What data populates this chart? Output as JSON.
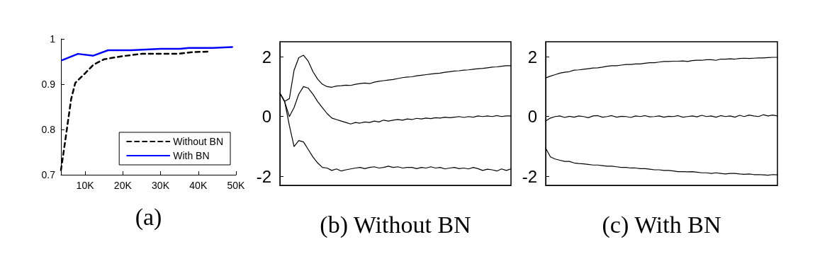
{
  "chart_data": [
    {
      "type": "line",
      "xlabel": "(a)",
      "xlim": [
        3600,
        50000
      ],
      "xticks": [
        {
          "value": 10000,
          "label": "10K"
        },
        {
          "value": 20000,
          "label": "20K"
        },
        {
          "value": 30000,
          "label": "30K"
        },
        {
          "value": 40000,
          "label": "40K"
        },
        {
          "value": 50000,
          "label": "50K"
        }
      ],
      "ylim": [
        0.7,
        1
      ],
      "yticks": [
        0.7,
        0.8,
        0.9,
        1
      ],
      "legend": "bottom right",
      "marker": "none",
      "series": [
        {
          "name": "Without BN",
          "color": "#000000",
          "line_style": "dashed",
          "x": [
            3600,
            4700,
            6300,
            7400,
            10000,
            12200,
            15000,
            20000,
            25000,
            30000,
            34400,
            38800,
            43100
          ],
          "values": [
            0.71,
            0.773,
            0.867,
            0.903,
            0.924,
            0.943,
            0.955,
            0.962,
            0.967,
            0.967,
            0.967,
            0.971,
            0.972
          ]
        },
        {
          "name": "With BN",
          "color": "#0000ff",
          "line_style": "solid",
          "x": [
            3900,
            8100,
            12200,
            16100,
            22200,
            30000,
            35000,
            37500,
            43800,
            49000
          ],
          "values": [
            0.953,
            0.967,
            0.963,
            0.975,
            0.975,
            0.978,
            0.978,
            0.98,
            0.98,
            0.982
          ]
        }
      ]
    },
    {
      "type": "line",
      "xlabel": "(b) Without BN",
      "ylim": [
        -2.3,
        2.5
      ],
      "yticks": [
        -2,
        0,
        2
      ],
      "tick_labels": "y",
      "marker": "none",
      "categories": [
        null,
        null,
        null,
        null,
        null,
        null,
        null,
        null,
        null,
        null,
        null,
        null,
        null,
        null,
        null,
        null,
        null,
        null,
        null,
        null,
        null,
        null,
        null,
        null,
        null,
        null,
        null,
        null,
        null,
        null,
        null,
        null,
        null,
        null,
        null,
        null,
        null,
        null,
        null,
        null,
        null,
        null,
        null,
        null,
        null,
        null,
        null,
        null,
        null,
        null
      ],
      "series": [
        {
          "color": "#000000",
          "values": [
            0.78,
            0.51,
            0.6,
            1.55,
            1.97,
            2.05,
            1.85,
            1.5,
            1.25,
            1.08,
            1.0,
            0.98,
            1.02,
            1.03,
            1.05,
            1.04,
            1.08,
            1.1,
            1.12,
            1.1,
            1.15,
            1.18,
            1.2,
            1.22,
            1.24,
            1.27,
            1.3,
            1.32,
            1.33,
            1.36,
            1.38,
            1.4,
            1.42,
            1.44,
            1.45,
            1.48,
            1.5,
            1.52,
            1.53,
            1.55,
            1.56,
            1.58,
            1.6,
            1.61,
            1.63,
            1.65,
            1.66,
            1.68,
            1.7,
            1.7
          ]
        },
        {
          "color": "#000000",
          "values": [
            0.78,
            0.5,
            0.0,
            0.3,
            0.75,
            1.0,
            0.95,
            0.75,
            0.5,
            0.3,
            0.1,
            -0.05,
            -0.1,
            -0.15,
            -0.2,
            -0.25,
            -0.2,
            -0.22,
            -0.18,
            -0.2,
            -0.15,
            -0.18,
            -0.12,
            -0.15,
            -0.12,
            -0.1,
            -0.12,
            -0.08,
            -0.1,
            -0.06,
            -0.08,
            -0.05,
            -0.07,
            -0.04,
            -0.05,
            -0.02,
            -0.04,
            -0.02,
            0.0,
            -0.03,
            0.0,
            -0.02,
            0.02,
            0.0,
            0.02,
            0.0,
            0.03,
            0.0,
            0.02,
            0.02
          ]
        },
        {
          "color": "#000000",
          "values": [
            0.78,
            0.5,
            -0.3,
            -1.0,
            -0.8,
            -0.85,
            -1.1,
            -1.35,
            -1.55,
            -1.7,
            -1.72,
            -1.8,
            -1.75,
            -1.82,
            -1.78,
            -1.75,
            -1.72,
            -1.7,
            -1.74,
            -1.7,
            -1.68,
            -1.72,
            -1.7,
            -1.66,
            -1.7,
            -1.68,
            -1.72,
            -1.7,
            -1.7,
            -1.74,
            -1.7,
            -1.72,
            -1.68,
            -1.72,
            -1.7,
            -1.75,
            -1.72,
            -1.7,
            -1.74,
            -1.72,
            -1.75,
            -1.7,
            -1.74,
            -1.8,
            -1.76,
            -1.78,
            -1.82,
            -1.75,
            -1.8,
            -1.75
          ]
        }
      ]
    },
    {
      "type": "line",
      "xlabel": "(c) With BN",
      "ylim": [
        -2.3,
        2.5
      ],
      "yticks": [
        -2,
        0,
        2
      ],
      "tick_labels": "y",
      "marker": "none",
      "categories": [
        null,
        null,
        null,
        null,
        null,
        null,
        null,
        null,
        null,
        null,
        null,
        null,
        null,
        null,
        null,
        null,
        null,
        null,
        null,
        null,
        null,
        null,
        null,
        null,
        null,
        null,
        null,
        null,
        null,
        null,
        null,
        null,
        null,
        null,
        null,
        null,
        null,
        null,
        null,
        null,
        null,
        null,
        null,
        null,
        null,
        null,
        null,
        null,
        null,
        null
      ],
      "series": [
        {
          "color": "#000000",
          "values": [
            1.29,
            1.35,
            1.4,
            1.45,
            1.48,
            1.5,
            1.55,
            1.56,
            1.58,
            1.6,
            1.62,
            1.63,
            1.65,
            1.68,
            1.7,
            1.7,
            1.72,
            1.74,
            1.74,
            1.76,
            1.76,
            1.78,
            1.8,
            1.8,
            1.82,
            1.84,
            1.84,
            1.85,
            1.85,
            1.86,
            1.84,
            1.87,
            1.88,
            1.88,
            1.9,
            1.9,
            1.88,
            1.92,
            1.92,
            1.93,
            1.92,
            1.94,
            1.95,
            1.94,
            1.95,
            1.96,
            1.96,
            1.97,
            1.98,
            1.98
          ]
        },
        {
          "color": "#000000",
          "values": [
            -0.15,
            -0.05,
            0.0,
            0.02,
            -0.03,
            0.01,
            -0.02,
            0.02,
            0.0,
            -0.04,
            0.02,
            0.03,
            -0.02,
            0.0,
            0.03,
            -0.02,
            0.01,
            0.0,
            -0.03,
            0.02,
            0.0,
            0.03,
            -0.01,
            0.0,
            0.02,
            -0.02,
            0.01,
            0.0,
            0.03,
            -0.02,
            0.0,
            0.02,
            -0.01,
            0.04,
            0.0,
            0.02,
            -0.02,
            0.03,
            0.0,
            0.02,
            -0.02,
            0.04,
            0.0,
            0.05,
            0.02,
            0.0,
            0.06,
            0.02,
            0.05,
            0.02
          ]
        },
        {
          "color": "#000000",
          "values": [
            -1.06,
            -1.35,
            -1.42,
            -1.46,
            -1.5,
            -1.5,
            -1.55,
            -1.57,
            -1.58,
            -1.6,
            -1.62,
            -1.62,
            -1.64,
            -1.66,
            -1.66,
            -1.68,
            -1.7,
            -1.7,
            -1.72,
            -1.72,
            -1.74,
            -1.74,
            -1.76,
            -1.78,
            -1.78,
            -1.8,
            -1.8,
            -1.82,
            -1.84,
            -1.84,
            -1.85,
            -1.84,
            -1.86,
            -1.88,
            -1.88,
            -1.9,
            -1.88,
            -1.9,
            -1.92,
            -1.9,
            -1.9,
            -1.92,
            -1.93,
            -1.92,
            -1.94,
            -1.94,
            -1.95,
            -1.96,
            -1.94,
            -1.95
          ]
        }
      ]
    }
  ]
}
